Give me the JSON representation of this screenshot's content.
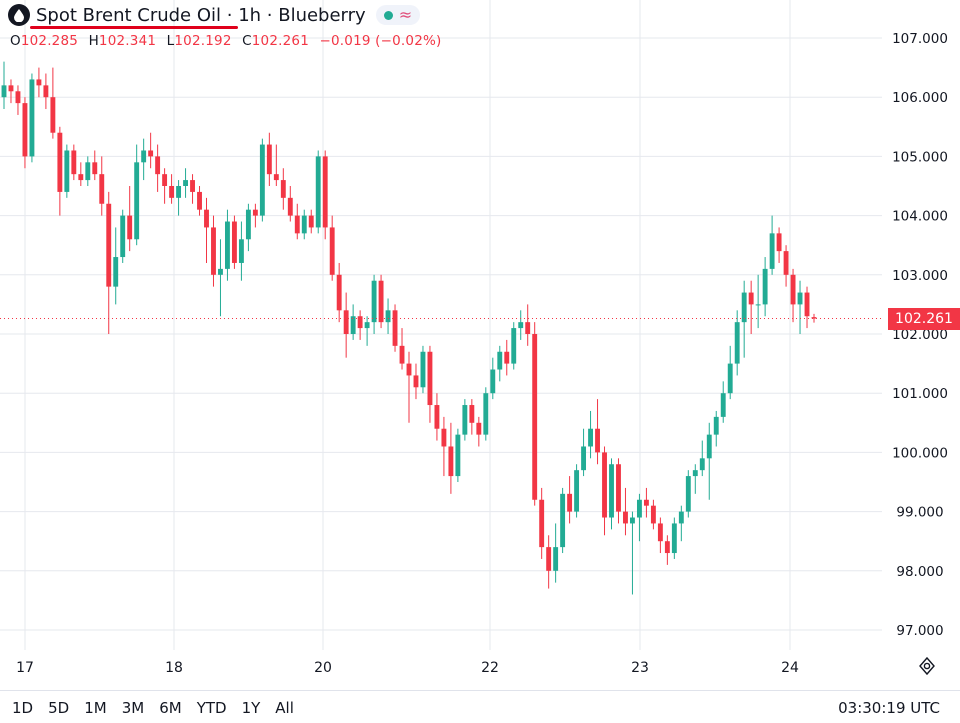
{
  "header": {
    "symbol_line": "Spot Brent Crude Oil · 1h · Blueberry",
    "status_icon": "wave-icon"
  },
  "ohlc": {
    "o_label": "O",
    "o_value": "102.285",
    "h_label": "H",
    "h_value": "102.341",
    "l_label": "L",
    "l_value": "102.192",
    "c_label": "C",
    "c_value": "102.261",
    "change": "−0.019 (−0.02%)"
  },
  "last_price": "102.261",
  "range_buttons": [
    "1D",
    "5D",
    "1M",
    "3M",
    "6M",
    "YTD",
    "1Y",
    "All"
  ],
  "utc_time": "03:30:19 UTC",
  "colors": {
    "up": "#22ab94",
    "down": "#f23645",
    "accent": "#e0001b"
  },
  "chart_data": {
    "type": "candlestick",
    "y_ticks": [
      "107.000",
      "106.000",
      "105.000",
      "104.000",
      "103.000",
      "102.000",
      "101.000",
      "100.000",
      "99.000",
      "98.000",
      "97.000"
    ],
    "x_ticks": [
      "17",
      "18",
      "20",
      "22",
      "23",
      "24"
    ],
    "ylim": [
      96.6,
      107.3
    ],
    "last_value": 102.261,
    "candles": [
      [
        106.0,
        106.6,
        105.8,
        106.2
      ],
      [
        106.2,
        106.3,
        105.9,
        106.1
      ],
      [
        106.1,
        106.2,
        105.7,
        105.9
      ],
      [
        105.9,
        106.0,
        104.8,
        105.0
      ],
      [
        105.0,
        106.4,
        104.9,
        106.3
      ],
      [
        106.3,
        106.5,
        106.0,
        106.2
      ],
      [
        106.2,
        106.4,
        105.8,
        106.0
      ],
      [
        106.0,
        106.5,
        105.3,
        105.4
      ],
      [
        105.4,
        105.5,
        104.0,
        104.4
      ],
      [
        104.4,
        105.2,
        104.3,
        105.1
      ],
      [
        105.1,
        105.2,
        104.6,
        104.7
      ],
      [
        104.7,
        104.9,
        104.5,
        104.6
      ],
      [
        104.6,
        105.0,
        104.5,
        104.9
      ],
      [
        104.9,
        105.1,
        104.6,
        104.7
      ],
      [
        104.7,
        105.0,
        104.0,
        104.2
      ],
      [
        104.2,
        104.4,
        102.0,
        102.8
      ],
      [
        102.8,
        103.8,
        102.5,
        103.3
      ],
      [
        103.3,
        104.1,
        103.2,
        104.0
      ],
      [
        104.0,
        104.5,
        103.4,
        103.6
      ],
      [
        103.6,
        105.2,
        103.5,
        104.9
      ],
      [
        104.9,
        105.3,
        104.6,
        105.1
      ],
      [
        105.1,
        105.4,
        104.8,
        105.0
      ],
      [
        105.0,
        105.2,
        104.4,
        104.7
      ],
      [
        104.7,
        104.8,
        104.2,
        104.5
      ],
      [
        104.5,
        104.7,
        104.2,
        104.3
      ],
      [
        104.3,
        104.6,
        104.0,
        104.5
      ],
      [
        104.5,
        104.8,
        104.3,
        104.6
      ],
      [
        104.6,
        104.7,
        104.2,
        104.4
      ],
      [
        104.4,
        104.5,
        104.0,
        104.1
      ],
      [
        104.1,
        104.3,
        103.2,
        103.8
      ],
      [
        103.8,
        104.0,
        102.8,
        103.0
      ],
      [
        103.0,
        103.6,
        102.3,
        103.1
      ],
      [
        103.1,
        104.1,
        102.9,
        103.9
      ],
      [
        103.9,
        104.0,
        103.1,
        103.2
      ],
      [
        103.2,
        103.9,
        102.9,
        103.6
      ],
      [
        103.6,
        104.2,
        103.4,
        104.1
      ],
      [
        104.1,
        104.2,
        103.8,
        104.0
      ],
      [
        104.0,
        105.3,
        103.9,
        105.2
      ],
      [
        105.2,
        105.4,
        104.5,
        104.7
      ],
      [
        104.7,
        105.2,
        104.5,
        104.6
      ],
      [
        104.6,
        104.8,
        104.1,
        104.3
      ],
      [
        104.3,
        104.5,
        103.9,
        104.0
      ],
      [
        104.0,
        104.2,
        103.6,
        103.7
      ],
      [
        103.7,
        104.1,
        103.6,
        104.0
      ],
      [
        104.0,
        104.1,
        103.7,
        103.8
      ],
      [
        103.8,
        105.1,
        103.7,
        105.0
      ],
      [
        105.0,
        105.1,
        103.6,
        103.8
      ],
      [
        103.8,
        104.0,
        102.9,
        103.0
      ],
      [
        103.0,
        103.2,
        102.2,
        102.4
      ],
      [
        102.4,
        102.7,
        101.6,
        102.0
      ],
      [
        102.0,
        102.5,
        101.9,
        102.3
      ],
      [
        102.3,
        102.4,
        101.9,
        102.1
      ],
      [
        102.1,
        102.3,
        101.8,
        102.2
      ],
      [
        102.2,
        103.0,
        102.0,
        102.9
      ],
      [
        102.9,
        103.0,
        102.1,
        102.2
      ],
      [
        102.2,
        102.6,
        102.0,
        102.4
      ],
      [
        102.4,
        102.5,
        101.7,
        101.8
      ],
      [
        101.8,
        102.1,
        101.4,
        101.5
      ],
      [
        101.5,
        101.7,
        100.5,
        101.3
      ],
      [
        101.3,
        101.5,
        100.9,
        101.1
      ],
      [
        101.1,
        101.8,
        101.0,
        101.7
      ],
      [
        101.7,
        101.8,
        100.5,
        100.8
      ],
      [
        100.8,
        101.0,
        100.2,
        100.4
      ],
      [
        100.4,
        100.6,
        99.6,
        100.1
      ],
      [
        100.1,
        100.5,
        99.3,
        99.6
      ],
      [
        99.6,
        100.4,
        99.5,
        100.3
      ],
      [
        100.3,
        100.9,
        100.2,
        100.8
      ],
      [
        100.8,
        100.9,
        100.3,
        100.5
      ],
      [
        100.5,
        100.6,
        100.1,
        100.3
      ],
      [
        100.3,
        101.1,
        100.2,
        101.0
      ],
      [
        101.0,
        101.6,
        100.9,
        101.4
      ],
      [
        101.4,
        101.8,
        101.2,
        101.7
      ],
      [
        101.7,
        101.9,
        101.3,
        101.5
      ],
      [
        101.5,
        102.2,
        101.4,
        102.1
      ],
      [
        102.1,
        102.4,
        101.9,
        102.2
      ],
      [
        102.2,
        102.5,
        101.8,
        102.0
      ],
      [
        102.0,
        102.2,
        99.1,
        99.2
      ],
      [
        99.2,
        99.4,
        98.2,
        98.4
      ],
      [
        98.4,
        98.6,
        97.7,
        98.0
      ],
      [
        98.0,
        98.8,
        97.8,
        98.4
      ],
      [
        98.4,
        99.4,
        98.3,
        99.3
      ],
      [
        99.3,
        99.6,
        98.8,
        99.0
      ],
      [
        99.0,
        99.8,
        98.9,
        99.7
      ],
      [
        99.7,
        100.4,
        99.6,
        100.1
      ],
      [
        100.1,
        100.7,
        99.9,
        100.4
      ],
      [
        100.4,
        100.9,
        99.8,
        100.0
      ],
      [
        100.0,
        100.1,
        98.6,
        98.9
      ],
      [
        98.9,
        99.9,
        98.7,
        99.8
      ],
      [
        99.8,
        99.9,
        98.8,
        99.0
      ],
      [
        99.0,
        99.4,
        98.6,
        98.8
      ],
      [
        98.8,
        99.0,
        97.6,
        98.9
      ],
      [
        98.9,
        99.3,
        98.5,
        99.2
      ],
      [
        99.2,
        99.4,
        98.9,
        99.1
      ],
      [
        99.1,
        99.2,
        98.7,
        98.8
      ],
      [
        98.8,
        98.9,
        98.3,
        98.5
      ],
      [
        98.5,
        98.6,
        98.1,
        98.3
      ],
      [
        98.3,
        98.9,
        98.2,
        98.8
      ],
      [
        98.8,
        99.1,
        98.5,
        99.0
      ],
      [
        99.0,
        99.7,
        98.9,
        99.6
      ],
      [
        99.6,
        99.8,
        99.3,
        99.7
      ],
      [
        99.7,
        100.2,
        99.6,
        99.9
      ],
      [
        99.9,
        100.5,
        99.2,
        100.3
      ],
      [
        100.3,
        100.7,
        100.1,
        100.6
      ],
      [
        100.6,
        101.2,
        100.5,
        101.0
      ],
      [
        101.0,
        101.8,
        100.9,
        101.5
      ],
      [
        101.5,
        102.4,
        101.3,
        102.2
      ],
      [
        102.2,
        102.9,
        101.6,
        102.7
      ],
      [
        102.7,
        102.9,
        102.0,
        102.5
      ],
      [
        102.5,
        103.0,
        102.1,
        102.5
      ],
      [
        102.5,
        103.3,
        102.3,
        103.1
      ],
      [
        103.1,
        104.0,
        103.0,
        103.7
      ],
      [
        103.7,
        103.8,
        103.2,
        103.4
      ],
      [
        103.4,
        103.5,
        102.8,
        103.0
      ],
      [
        103.0,
        103.1,
        102.2,
        102.5
      ],
      [
        102.5,
        102.9,
        102.0,
        102.7
      ],
      [
        102.7,
        102.8,
        102.1,
        102.3
      ],
      [
        102.285,
        102.341,
        102.192,
        102.261
      ]
    ]
  }
}
